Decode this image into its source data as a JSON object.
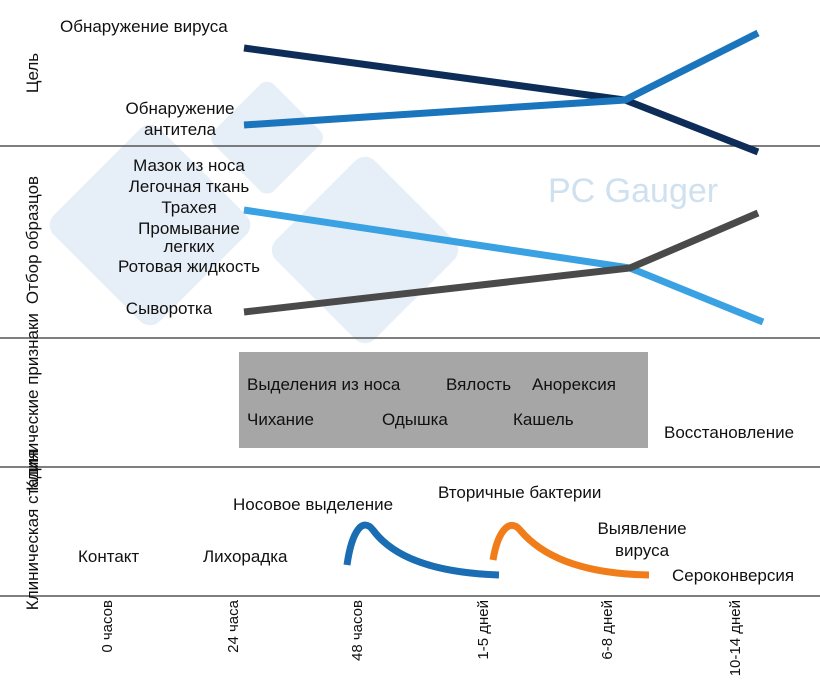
{
  "colors": {
    "virus_line": "#0d2d58",
    "antibody_line": "#1a75bc",
    "sample_blue_line": "#3aa1e3",
    "serum_line": "#4a4a4a",
    "clinical_box": "#a6a6a6",
    "stage_blue_curve": "#1a6db3",
    "stage_orange_curve": "#f07d1a",
    "divider": "#555555",
    "watermark": "#cfe0ef"
  },
  "rows": {
    "goal": "Цель",
    "sampling": "Отбор образцов",
    "clinical_signs": "Клинические признаки",
    "clinical_stage": "Клиническая стадия"
  },
  "goal": {
    "virus_detection": "Обнаружение вируса",
    "antibody_detection_line1": "Обнаружение",
    "antibody_detection_line2": "антитела"
  },
  "sampling": {
    "nasal_swab": "Мазок из носа",
    "lung_tissue": "Легочная ткань",
    "trachea": "Трахея",
    "lavage_line1": "Промывание",
    "lavage_line2": "легких",
    "oral_fluid": "Ротовая жидкость",
    "serum": "Сыворотка"
  },
  "clinical_signs": {
    "nasal_discharge": "Выделения из носа",
    "lethargy": "Вялость",
    "anorexia": "Анорексия",
    "sneezing": "Чихание",
    "dyspnea": "Одышка",
    "cough": "Кашель",
    "recovery": "Восстановление"
  },
  "clinical_stage": {
    "contact": "Контакт",
    "fever": "Лихорадка",
    "nasal_discharge": "Носовое выделение",
    "secondary_bacteria": "Вторичные бактерии",
    "virus_detection_line1": "Выявление",
    "virus_detection_line2": "вируса",
    "seroconversion": "Сероконверсия"
  },
  "timeline": {
    "ticks": [
      "0 часов",
      "24 часа",
      "48 часов",
      "1-5 дней",
      "6-8 дней",
      "10-14 дней"
    ]
  },
  "watermark": {
    "text": "PC Gauger"
  }
}
